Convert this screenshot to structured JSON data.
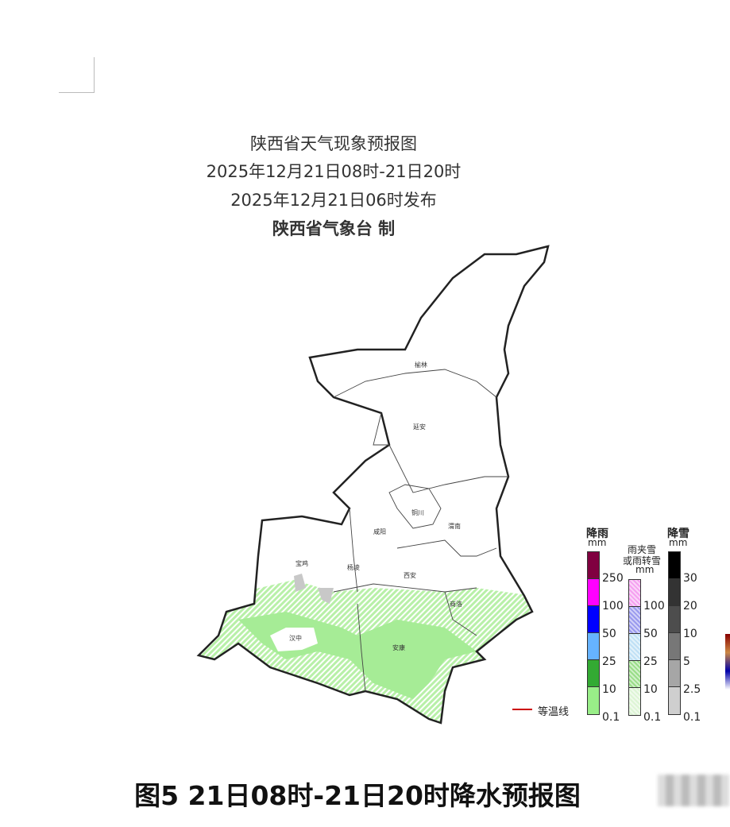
{
  "header": {
    "title": "陕西省天气现象预报图",
    "period": "2025年12月21日08时-21日20时",
    "issued": "2025年12月21日06时发布",
    "publisher": "陕西省气象台 制"
  },
  "cities": [
    "榆林",
    "延安",
    "铜川",
    "咸阳",
    "渭南",
    "宝鸡",
    "杨凌",
    "西安",
    "商洛",
    "汉中",
    "安康"
  ],
  "legend": {
    "isotherm": "等温线",
    "rain": {
      "title": "降雨",
      "unit": "mm",
      "ticks": [
        "250",
        "100",
        "50",
        "25",
        "10",
        "0.1"
      ],
      "colors": [
        "#800040",
        "#ff00ff",
        "#0000ff",
        "#66b3ff",
        "#33aa33",
        "#99ee88"
      ]
    },
    "mixed": {
      "title1": "雨夹雪",
      "title2": "或雨转雪",
      "unit": "mm",
      "ticks": [
        "100",
        "50",
        "25",
        "10",
        "0.1"
      ],
      "colors": [
        "#f5a0f0",
        "#9999ee",
        "#bfe0f5",
        "#99dd88",
        "#ddf5d5"
      ]
    },
    "snow": {
      "title": "降雪",
      "unit": "mm",
      "ticks": [
        "30",
        "20",
        "10",
        "5",
        "2.5",
        "0.1"
      ],
      "colors": [
        "#000000",
        "#333333",
        "#4d4d4d",
        "#777777",
        "#a6a6a6",
        "#cfcfcf"
      ]
    }
  },
  "caption": "图5  21日08时-21日20时降水预报图"
}
